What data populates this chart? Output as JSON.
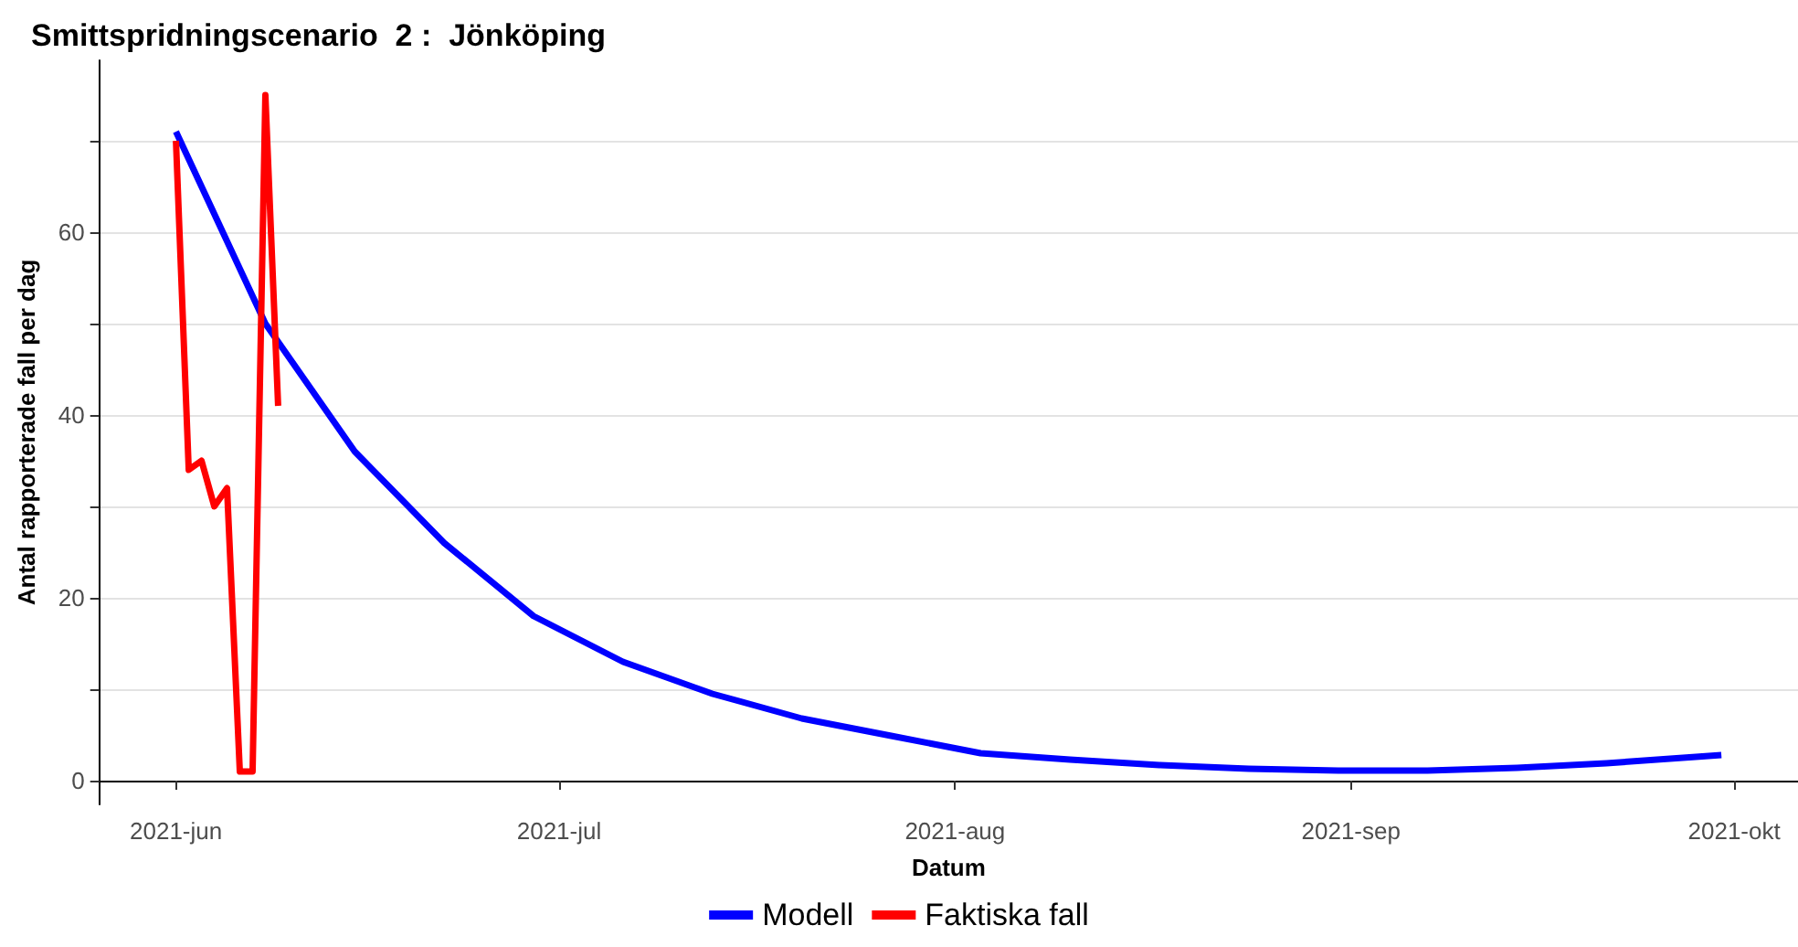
{
  "chart_data": {
    "type": "line",
    "title": "Smittspridningscenario  2 :  Jönköping",
    "xlabel": "Datum",
    "ylabel": "Antal rapporterade fall per dag",
    "xlim": [
      "2021-05-26",
      "2021-10-06"
    ],
    "xticks": [
      {
        "value": "2021-06-01",
        "label": "2021-jun"
      },
      {
        "value": "2021-07-01",
        "label": "2021-jul"
      },
      {
        "value": "2021-08-01",
        "label": "2021-aug"
      },
      {
        "value": "2021-09-01",
        "label": "2021-sep"
      },
      {
        "value": "2021-10-01",
        "label": "2021-okt"
      }
    ],
    "ylim": [
      -2.6,
      78.8
    ],
    "yticks": [
      0,
      {
        "value": 10,
        "label": null
      },
      20,
      {
        "value": 30,
        "label": null
      },
      40,
      {
        "value": 50,
        "label": null
      },
      60,
      {
        "value": 70,
        "label": null
      }
    ],
    "grid": "y",
    "legend": "bottom",
    "marker": "none",
    "line_style": "solid",
    "series": [
      {
        "name": "Modell",
        "color": "#0000ff",
        "x": [
          "2021-06-01",
          "2021-06-08",
          "2021-06-15",
          "2021-06-22",
          "2021-06-29",
          "2021-07-06",
          "2021-07-13",
          "2021-07-20",
          "2021-07-27",
          "2021-08-03",
          "2021-08-10",
          "2021-08-17",
          "2021-08-24",
          "2021-08-31",
          "2021-09-07",
          "2021-09-14",
          "2021-09-21",
          "2021-09-28",
          "2021-09-30"
        ],
        "values": [
          71,
          50,
          36,
          26,
          18,
          13,
          9.5,
          6.8,
          4.9,
          3,
          2.3,
          1.7,
          1.3,
          1.1,
          1.1,
          1.4,
          1.9,
          2.6,
          2.8
        ]
      },
      {
        "name": "Faktiska fall",
        "color": "#ff0000",
        "x": [
          "2021-06-01",
          "2021-06-02",
          "2021-06-03",
          "2021-06-04",
          "2021-06-05",
          "2021-06-06",
          "2021-06-07",
          "2021-06-08",
          "2021-06-09"
        ],
        "values": [
          70,
          34,
          35,
          30,
          32,
          1,
          1,
          75,
          41
        ]
      }
    ]
  }
}
